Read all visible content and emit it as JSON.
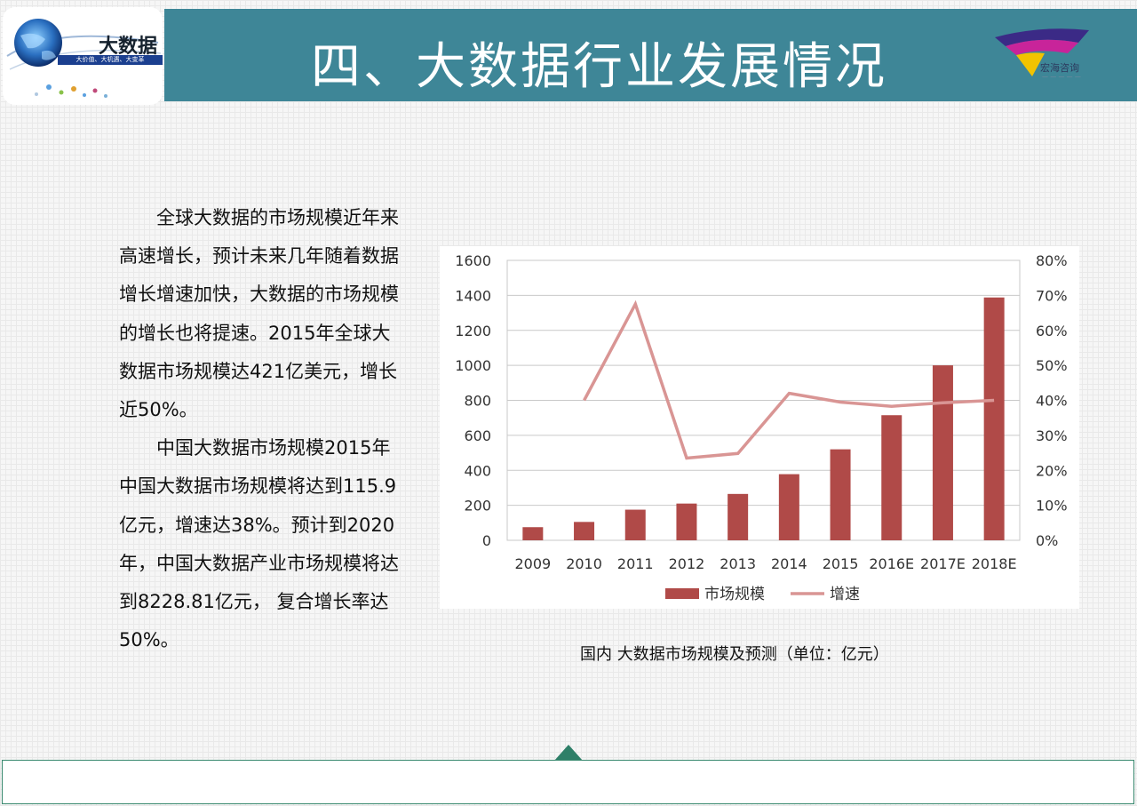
{
  "header": {
    "title": "四、大数据行业发展情况",
    "color": "#3e8697"
  },
  "logo_left": {
    "big_text": "大数据",
    "tagline": "大价值、大机遇、大变革"
  },
  "logo_right": {
    "brand": "宏海咨询"
  },
  "body_paragraphs": [
    "全球大数据的市场规模近年来高速增长，预计未来几年随着数据增长增速加快，大数据的市场规模的增长也将提速。2015年全球大数据市场规模达421亿美元，增长近50%。",
    "中国大数据市场规模2015年中国大数据市场规模将达到115.9亿元，增速达38%。预计到2020年，中国大数据产业市场规模将达到8228.81亿元， 复合增长率达50%。"
  ],
  "chart_caption": "国内 大数据市场规模及预测（单位：亿元）",
  "chart_data": {
    "type": "bar",
    "categories": [
      "2009",
      "2010",
      "2011",
      "2012",
      "2013",
      "2014",
      "2015",
      "2016E",
      "2017E",
      "2018E"
    ],
    "series": [
      {
        "name": "市场规模",
        "type": "bar",
        "axis": "left",
        "color": "#b04a48",
        "values": [
          75,
          105,
          175,
          210,
          265,
          378,
          520,
          715,
          1000,
          1388
        ]
      },
      {
        "name": "增速",
        "type": "line",
        "axis": "right",
        "color": "#d99594",
        "values": [
          null,
          40,
          67.5,
          23.5,
          24.8,
          42,
          39.5,
          38.3,
          39.3,
          40
        ]
      }
    ],
    "y_left": {
      "min": 0,
      "max": 1600,
      "step": 200
    },
    "y_right": {
      "min": 0,
      "max": 80,
      "step": 10,
      "suffix": "%"
    },
    "grid": true,
    "legend_position": "bottom"
  }
}
